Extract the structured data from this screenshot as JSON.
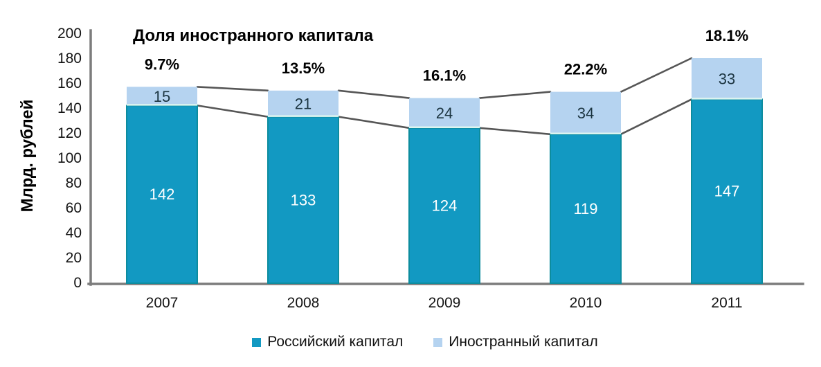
{
  "chart_data": {
    "type": "bar",
    "stacked": true,
    "title": "Доля иностранного капитала",
    "ylabel": "Млрд. рублей",
    "xlabel": "",
    "categories": [
      "2007",
      "2008",
      "2009",
      "2010",
      "2011"
    ],
    "series": [
      {
        "name": "Российский капитал",
        "color": "#1299C2",
        "values": [
          142,
          133,
          124,
          119,
          147
        ]
      },
      {
        "name": "Иностранный капитал",
        "color": "#B5D3F0",
        "values": [
          15,
          21,
          24,
          34,
          33
        ]
      }
    ],
    "totals": [
      157,
      154,
      148,
      153,
      180
    ],
    "pct_labels": [
      "9.7%",
      "13.5%",
      "16.1%",
      "22.2%",
      "18.1%"
    ],
    "ylim": [
      0,
      200
    ],
    "ytick_step": 20,
    "grid": false,
    "legend_position": "bottom",
    "colors": {
      "axis": "#7C7C7C",
      "connector": "#565656",
      "bar_dark_stroke": "#0D8C9E",
      "segment_divider": "#DCF4F0",
      "value_light_text": "#1B3440",
      "value_dark_text": "#ffffff"
    }
  }
}
